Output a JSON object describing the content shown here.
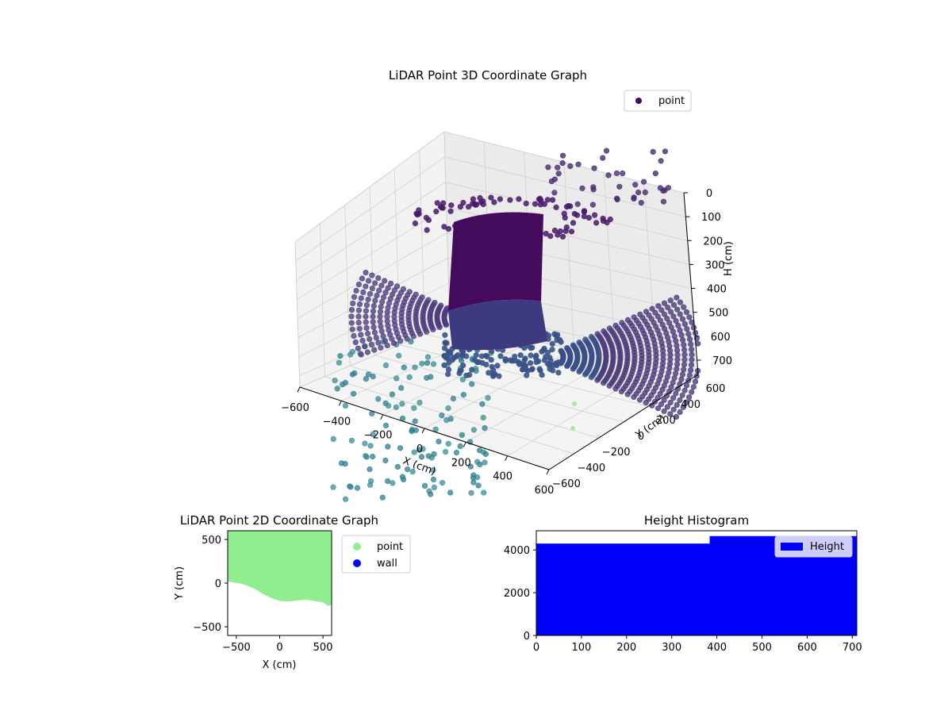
{
  "chart_data": [
    {
      "id": "lidar3d",
      "type": "scatter",
      "title": "LiDAR Point 3D Coordinate Graph",
      "xlabel": "X (cm)",
      "ylabel": "Y (cm)",
      "zlabel": "H (cm)",
      "xticks": [
        "−600",
        "−400",
        "−200",
        "0",
        "200",
        "400",
        "600"
      ],
      "yticks": [
        "−600",
        "−400",
        "−200",
        "0",
        "200",
        "400",
        "600"
      ],
      "zticks": [
        "0",
        "100",
        "200",
        "300",
        "400",
        "500",
        "600",
        "700"
      ],
      "legend": {
        "label": "point",
        "placement": "top-right"
      },
      "series": [
        {
          "name": "point",
          "colormap": "viridis"
        }
      ]
    },
    {
      "id": "lidar2d",
      "type": "scatter",
      "title": "LiDAR Point 2D Coordinate Graph",
      "xlabel": "X (cm)",
      "ylabel": "Y (cm)",
      "xticks": [
        "−500",
        "0",
        "500"
      ],
      "yticks": [
        "500",
        "0",
        "−500"
      ],
      "xlim": [
        -600,
        600
      ],
      "ylim": [
        -600,
        600
      ],
      "legend": {
        "placement": "right-outside",
        "entries": [
          "point",
          "wall"
        ]
      },
      "series": [
        {
          "name": "point",
          "color": "#90ee90"
        },
        {
          "name": "wall",
          "color": "#0000ff"
        }
      ]
    },
    {
      "id": "height_hist",
      "type": "bar",
      "title": "Height Histogram",
      "xticks": [
        "0",
        "100",
        "200",
        "300",
        "400",
        "500",
        "600",
        "700"
      ],
      "yticks": [
        "0",
        "2000",
        "4000"
      ],
      "xlim": [
        0,
        710
      ],
      "ylim": [
        0,
        4900
      ],
      "bins": [
        {
          "x0": 0,
          "x1": 384,
          "value": 4300
        },
        {
          "x0": 384,
          "x1": 710,
          "value": 4650
        }
      ],
      "legend": {
        "label": "Height",
        "placement": "top-right"
      },
      "series": [
        {
          "name": "Height",
          "color": "#0000ff"
        }
      ]
    }
  ]
}
